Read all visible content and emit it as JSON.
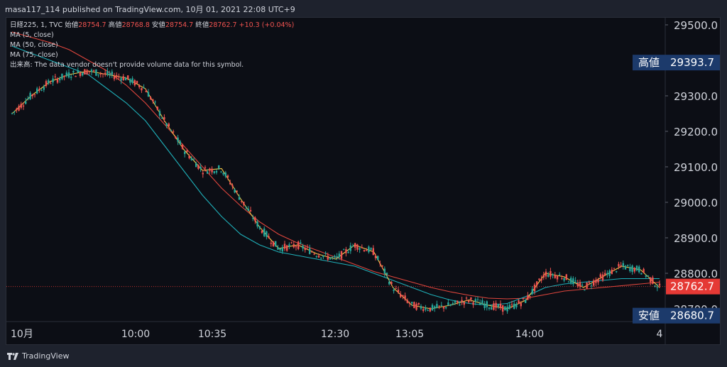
{
  "header": {
    "publisher": "masa117_114 published on TradingView.com, 10月 01, 2021 22:08 UTC+9"
  },
  "legend": {
    "symbol": "日経225, 1, TVC",
    "open_label": "始値",
    "open": "28754.7",
    "high_label": "高値",
    "high": "28768.8",
    "low_label": "安値",
    "low": "28754.7",
    "close_label": "終値",
    "close": "28762.7",
    "change": "+10.3 (+0.04%)",
    "ma1": "MA (5, close)",
    "ma2": "MA (50, close)",
    "ma3": "MA (75, close)",
    "volume_note": "出来高: The data vendor doesn't provide volume data for this symbol."
  },
  "footer": {
    "brand": "TradingView"
  },
  "colors": {
    "up": "#26a69a",
    "down": "#ef5350",
    "ma5": "#f7c948",
    "ma50": "#1fb0b9",
    "ma75": "#e0463d",
    "price_tag": "#e53935",
    "label_box": "#1c3a6b"
  },
  "chart_data": {
    "type": "line",
    "ylim": [
      28700,
      29500
    ],
    "y_ticks": [
      "29500.0",
      "29300.0",
      "29200.0",
      "29100.0",
      "29000.0",
      "28900.0",
      "28800.0",
      "28700.0"
    ],
    "x_ticks": [
      "10月",
      "10:00",
      "10:35",
      "12:30",
      "13:05",
      "14:00",
      "4"
    ],
    "price_labels": [
      {
        "name": "高値",
        "value": "29393.7"
      },
      {
        "name": "last",
        "value": "28762.7"
      },
      {
        "name": "安値",
        "value": "28680.7"
      }
    ],
    "series": [
      {
        "name": "MA (5, close)",
        "values": [
          29250,
          29300,
          29340,
          29360,
          29370,
          29360,
          29350,
          29320,
          29230,
          29150,
          29090,
          29095,
          29010,
          28930,
          28870,
          28880,
          28855,
          28840,
          28880,
          28860,
          28760,
          28710,
          28700,
          28710,
          28725,
          28710,
          28700,
          28725,
          28800,
          28790,
          28760,
          28790,
          28820,
          28810,
          28760
        ]
      },
      {
        "name": "MA (50, close)",
        "values": [
          29440,
          29420,
          29400,
          29380,
          29360,
          29320,
          29280,
          29230,
          29160,
          29090,
          29020,
          28960,
          28910,
          28880,
          28860,
          28850,
          28840,
          28830,
          28820,
          28800,
          28780,
          28760,
          28740,
          28725,
          28715,
          28710,
          28715,
          28735,
          28760,
          28770,
          28775,
          28780,
          28785,
          28785,
          28785
        ]
      },
      {
        "name": "MA (75, close)",
        "values": [
          29480,
          29465,
          29450,
          29430,
          29400,
          29370,
          29330,
          29280,
          29220,
          29160,
          29100,
          29040,
          28990,
          28945,
          28910,
          28885,
          28865,
          28845,
          28825,
          28805,
          28790,
          28775,
          28760,
          28748,
          28738,
          28730,
          28728,
          28730,
          28740,
          28750,
          28755,
          28760,
          28765,
          28770,
          28775
        ]
      }
    ]
  }
}
